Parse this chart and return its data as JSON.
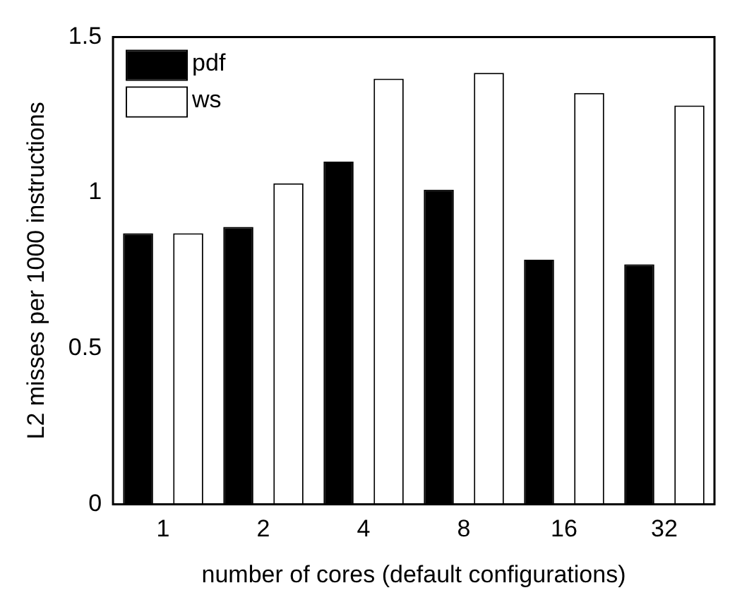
{
  "chart_data": {
    "type": "bar",
    "xlabel": "number of cores (default configurations)",
    "ylabel": "L2 misses per 1000 instructions",
    "categories": [
      "1",
      "2",
      "4",
      "8",
      "16",
      "32"
    ],
    "series": [
      {
        "name": "pdf",
        "color": "#000000",
        "values": [
          0.87,
          0.89,
          1.1,
          1.01,
          0.785,
          0.77
        ]
      },
      {
        "name": "ws",
        "color": "#ffffff",
        "values": [
          0.87,
          1.03,
          1.366,
          1.385,
          1.32,
          1.28
        ]
      }
    ],
    "ylim": [
      0,
      1.5
    ],
    "yticks": [
      0,
      0.5,
      1,
      1.5
    ],
    "grid": false,
    "legend": "top left"
  }
}
